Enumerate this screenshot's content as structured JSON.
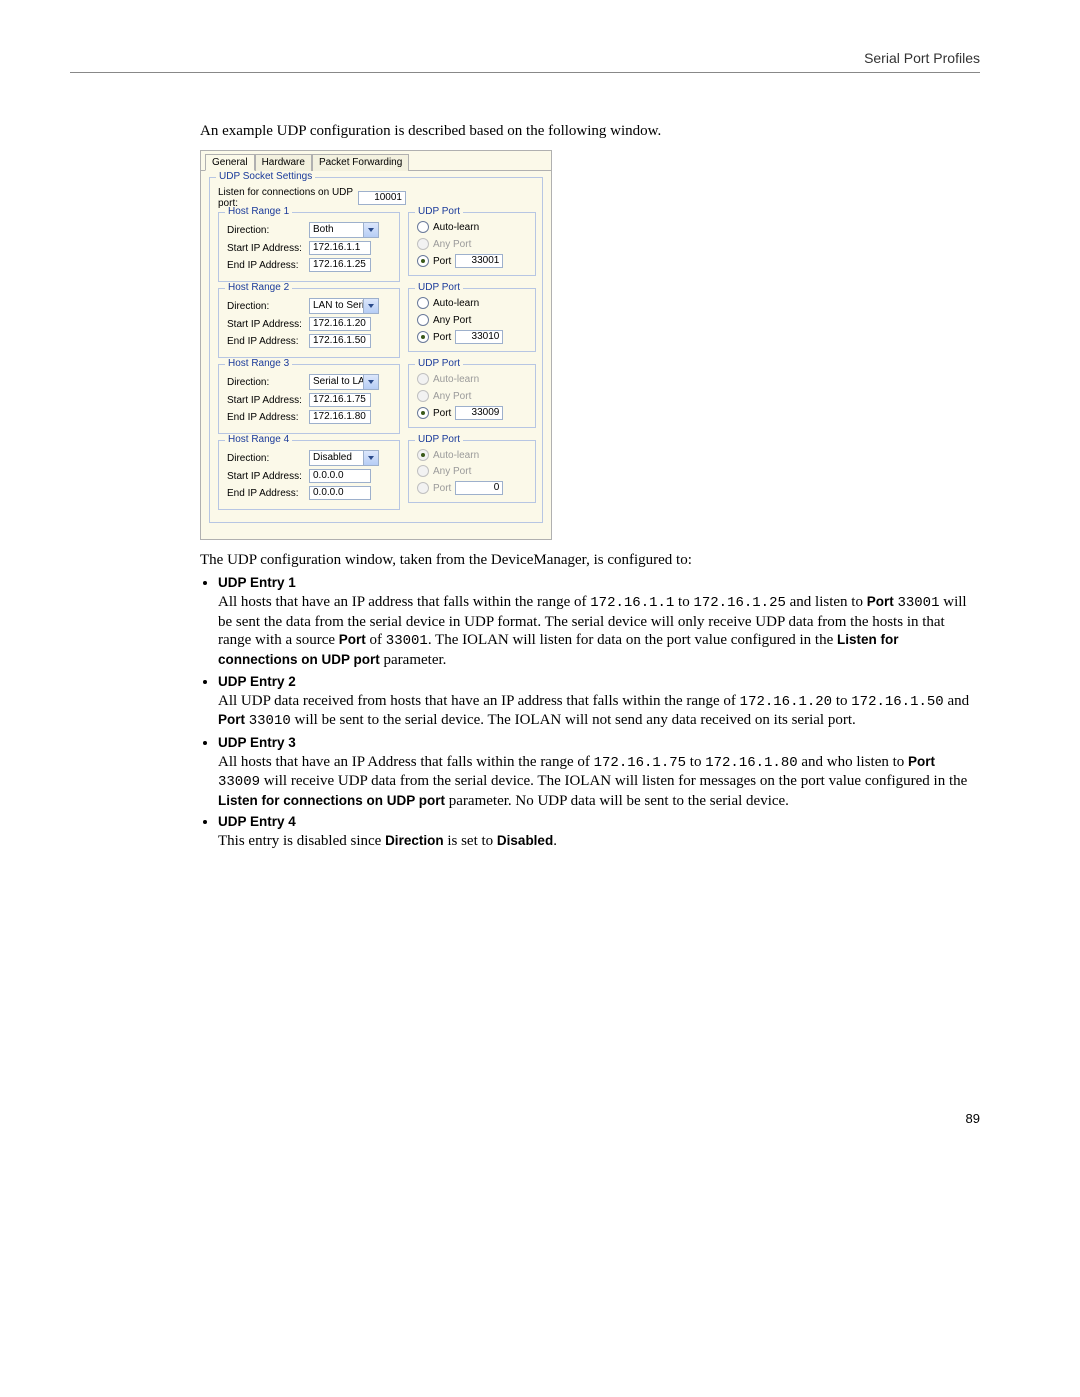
{
  "header": {
    "title": "Serial Port Profiles"
  },
  "intro": "An example UDP configuration is described based on the following window.",
  "ui": {
    "tabs": [
      "General",
      "Hardware",
      "Packet Forwarding"
    ],
    "active_tab": 0,
    "socket": {
      "legend": "UDP Socket Settings",
      "listen_label": "Listen for connections on UDP port:",
      "listen_value": "10001"
    },
    "ranges": [
      {
        "legend": "Host Range 1",
        "direction_label": "Direction:",
        "direction": "Both",
        "start_label": "Start IP Address:",
        "start": "172.16.1.1",
        "end_label": "End IP Address:",
        "end": "172.16.1.25",
        "udp": {
          "legend": "UDP Port",
          "auto": "Auto-learn",
          "any": "Any Port",
          "port_label": "Port",
          "port": "33001",
          "selected": "port",
          "disabled": [
            "any"
          ]
        }
      },
      {
        "legend": "Host Range 2",
        "direction_label": "Direction:",
        "direction": "LAN to Serial",
        "start_label": "Start IP Address:",
        "start": "172.16.1.20",
        "end_label": "End IP Address:",
        "end": "172.16.1.50",
        "udp": {
          "legend": "UDP Port",
          "auto": "Auto-learn",
          "any": "Any Port",
          "port_label": "Port",
          "port": "33010",
          "selected": "port",
          "disabled": []
        }
      },
      {
        "legend": "Host Range 3",
        "direction_label": "Direction:",
        "direction": "Serial to LAN",
        "start_label": "Start IP Address:",
        "start": "172.16.1.75",
        "end_label": "End IP Address:",
        "end": "172.16.1.80",
        "udp": {
          "legend": "UDP Port",
          "auto": "Auto-learn",
          "any": "Any Port",
          "port_label": "Port",
          "port": "33009",
          "selected": "port",
          "disabled": [
            "auto",
            "any"
          ]
        }
      },
      {
        "legend": "Host Range 4",
        "direction_label": "Direction:",
        "direction": "Disabled",
        "start_label": "Start IP Address:",
        "start": "0.0.0.0",
        "end_label": "End IP Address:",
        "end": "0.0.0.0",
        "udp": {
          "legend": "UDP Port",
          "auto": "Auto-learn",
          "any": "Any Port",
          "port_label": "Port",
          "port": "0",
          "selected": "auto",
          "disabled": [
            "auto",
            "any",
            "port"
          ]
        }
      }
    ]
  },
  "after_intro": "The UDP configuration window, taken from the DeviceManager, is configured to:",
  "entries": [
    {
      "title": "UDP Entry 1",
      "body_html": "All hosts that have an IP address that falls within the range of <span class='mono'>172.16.1.1</span> to <span class='mono'>172.16.1.25</span> and listen to <span class='sans-bold'>Port</span> <span class='mono'>33001</span> will be sent the data from the serial device in UDP format. The serial device will only receive UDP data from the hosts in that range with a source <span class='sans-bold'>Port</span> of <span class='mono'>33001</span>. The IOLAN will listen for data on the port value configured in the <span class='sans-bold'>Listen for connections on UDP port</span> parameter."
    },
    {
      "title": "UDP Entry 2",
      "body_html": "All UDP data received from hosts that have an IP address that falls within the range of <span class='mono'>172.16.1.20</span> to <span class='mono'>172.16.1.50</span> and <span class='sans-bold'>Port</span> <span class='mono'>33010</span> will be sent to the serial device. The IOLAN will not send any data received on its serial port."
    },
    {
      "title": "UDP Entry 3",
      "body_html": "All hosts that have an IP Address that falls within the range of <span class='mono'>172.16.1.75</span> to <span class='mono'>172.16.1.80</span> and who listen to <span class='sans-bold'>Port</span> <span class='mono'>33009</span> will receive UDP data from the serial device. The IOLAN will listen for messages on the port value configured in the <span class='sans-bold'>Listen for connections on UDP port</span> parameter. No UDP data will be sent to the serial device."
    },
    {
      "title": "UDP Entry 4",
      "body_html": "This entry is disabled since <span class='sans-bold'>Direction</span> is set to <span class='sans-bold'>Disabled</span>."
    }
  ],
  "page_number": "89"
}
